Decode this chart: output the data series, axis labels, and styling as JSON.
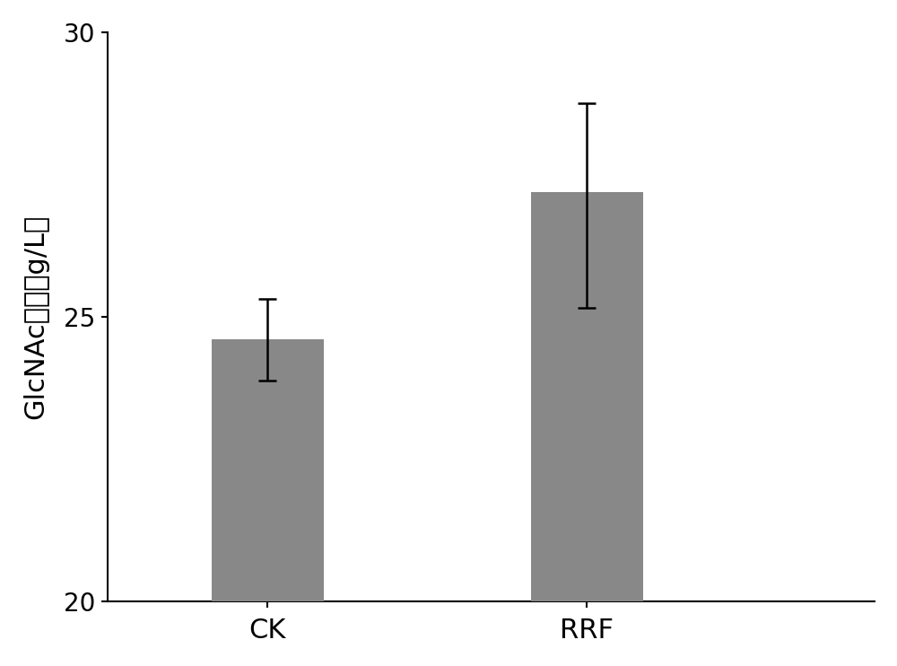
{
  "categories": [
    "CK",
    "RRF"
  ],
  "values": [
    24.6,
    27.2
  ],
  "error_upper": [
    0.72,
    1.55
  ],
  "error_lower": [
    0.72,
    2.05
  ],
  "bar_color": "#888888",
  "bar_width": 0.35,
  "ylim": [
    20,
    30
  ],
  "yticks": [
    20,
    25,
    30
  ],
  "ylabel_part1": "GlcNAc",
  "ylabel_part2": "产量（g/L）",
  "ylabel_fontsize": 22,
  "tick_fontsize": 20,
  "xtick_fontsize": 22,
  "background_color": "#ffffff"
}
